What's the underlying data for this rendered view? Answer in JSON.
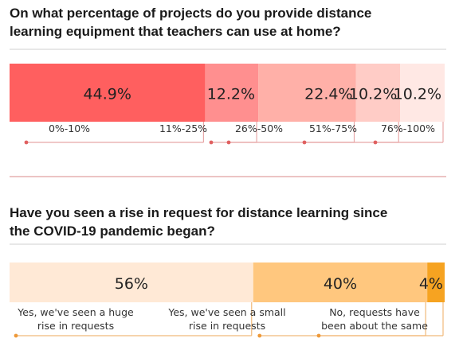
{
  "chart_data": [
    {
      "type": "bar",
      "title_lines": [
        "On what percentage of projects do you provide distance",
        "learning equipment that teachers can use at home?"
      ],
      "categories": [
        "0%-10%",
        "11%-25%",
        "26%-50%",
        "51%-75%",
        "76%-100%"
      ],
      "values": [
        44.9,
        12.2,
        22.4,
        10.2,
        10.2
      ],
      "value_labels": [
        "44.9%",
        "12.2%",
        "22.4%",
        "10.2%",
        "10.2%"
      ],
      "colors": [
        "#ff5f5f",
        "#ff8f8f",
        "#ffb0a8",
        "#ffccc6",
        "#ffe8e4"
      ]
    },
    {
      "type": "bar",
      "title_lines": [
        "Have you seen a rise in request for distance learning since",
        "the COVID-19 pandemic began?"
      ],
      "categories": [
        [
          "Yes, we've seen a huge",
          "rise in requests"
        ],
        [
          "Yes, we've seen a small",
          "rise in requests"
        ],
        [
          "No, requests have",
          "been about the same"
        ]
      ],
      "values": [
        56,
        40,
        4
      ],
      "value_labels": [
        "56%",
        "40%",
        "4%"
      ],
      "colors": [
        "#ffe9d6",
        "#ffc77e",
        "#f6a321"
      ]
    }
  ]
}
